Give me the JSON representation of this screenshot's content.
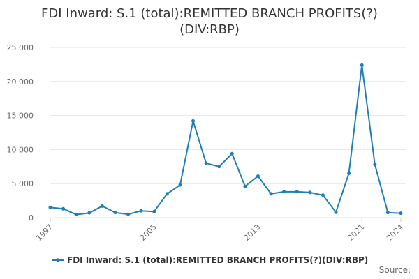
{
  "colors": {
    "series": "#1f7fb5",
    "grid": "#e6e6e6"
  },
  "chart_data": {
    "type": "line",
    "title": "FDI Inward: S.1 (total):REMITTED BRANCH PROFITS(?)(DIV:RBP)",
    "xlabel": "",
    "ylabel": "",
    "ylim": [
      0,
      25000
    ],
    "xlim": [
      1997,
      2024
    ],
    "yticks": [
      "0",
      "5 000",
      "10 000",
      "15 000",
      "20 000",
      "25 000"
    ],
    "xticks": [
      "1997",
      "2005",
      "2013",
      "2021",
      "2024"
    ],
    "grid": true,
    "legend_position": "bottom-left",
    "series": [
      {
        "name": "FDI Inward: S.1 (total):REMITTED BRANCH PROFITS(?)(DIV:RBP)",
        "x": [
          1997,
          1998,
          1999,
          2000,
          2001,
          2002,
          2003,
          2004,
          2005,
          2006,
          2007,
          2008,
          2009,
          2010,
          2011,
          2012,
          2013,
          2014,
          2015,
          2016,
          2017,
          2018,
          2019,
          2020,
          2021,
          2022,
          2023,
          2024
        ],
        "values": [
          1500,
          1300,
          450,
          700,
          1700,
          750,
          500,
          1000,
          900,
          3500,
          4800,
          14200,
          8000,
          7500,
          9400,
          4600,
          6100,
          3500,
          3800,
          3800,
          3700,
          3300,
          800,
          6500,
          22400,
          7800,
          750,
          650
        ]
      }
    ]
  },
  "legend": {
    "label": "FDI Inward: S.1 (total):REMITTED BRANCH PROFITS(?)(DIV:RBP)"
  },
  "footer": {
    "source": "Source:"
  }
}
